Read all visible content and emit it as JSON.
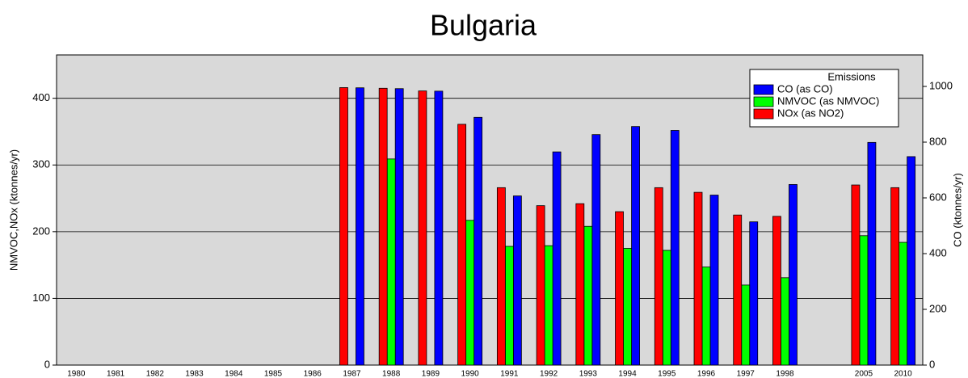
{
  "chart_data": {
    "type": "bar",
    "title": "Bulgaria",
    "ylabel": "NMVOC,NOx (ktonnes/yr)",
    "y2label": "CO (ktonnes/yr)",
    "categories": [
      "1980",
      "1981",
      "1982",
      "1983",
      "1984",
      "1985",
      "1986",
      "1987",
      "1988",
      "1989",
      "1990",
      "1991",
      "1992",
      "1993",
      "1994",
      "1995",
      "1996",
      "1997",
      "1998",
      null,
      "2005",
      "2010"
    ],
    "legend_title": "Emissions",
    "legend": "upper right",
    "grid": true,
    "series": [
      {
        "name": "CO (as CO)",
        "color": "#0000ff",
        "axis": "y2",
        "values": [
          null,
          null,
          null,
          null,
          null,
          null,
          null,
          995,
          992,
          983,
          889,
          607,
          765,
          827,
          856,
          842,
          610,
          514,
          648,
          null,
          799,
          748
        ]
      },
      {
        "name": "NMVOC (as NMVOC)",
        "color": "#00ff00",
        "values": [
          null,
          null,
          null,
          null,
          null,
          null,
          null,
          null,
          309,
          null,
          217,
          178,
          179,
          208,
          175,
          172,
          147,
          120,
          131,
          null,
          194,
          184
        ]
      },
      {
        "name": "NOx (as NO2)",
        "color": "#ff0000",
        "values": [
          null,
          null,
          null,
          null,
          null,
          null,
          null,
          416,
          415,
          411,
          361,
          266,
          239,
          242,
          230,
          266,
          259,
          225,
          223,
          null,
          270,
          266
        ]
      }
    ],
    "ylim": [
      0,
      465
    ],
    "yticks": [
      0,
      100,
      200,
      300,
      400
    ],
    "y2lim": [
      0,
      1113
    ],
    "y2ticks": [
      0,
      200,
      400,
      600,
      800,
      1000
    ]
  }
}
